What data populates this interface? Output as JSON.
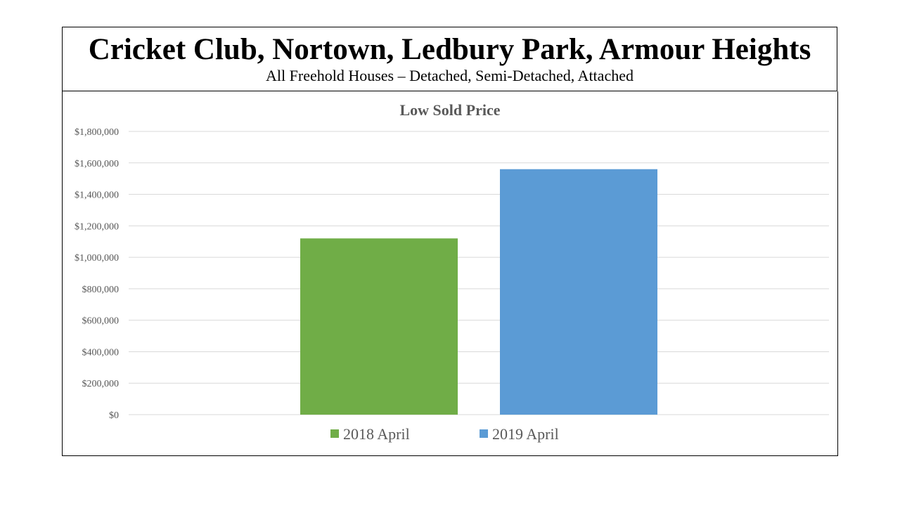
{
  "header": {
    "title": "Cricket Club, Nortown, Ledbury Park, Armour Heights",
    "subtitle": "All Freehold Houses – Detached, Semi-Detached, Attached"
  },
  "chart_data": {
    "type": "bar",
    "title": "Low Sold Price",
    "xlabel": "",
    "ylabel": "",
    "ylim": [
      0,
      1800000
    ],
    "yticks": [
      0,
      200000,
      400000,
      600000,
      800000,
      1000000,
      1200000,
      1400000,
      1600000,
      1800000
    ],
    "ytick_labels": [
      "$0",
      "$200,000",
      "$400,000",
      "$600,000",
      "$800,000",
      "$1,000,000",
      "$1,200,000",
      "$1,400,000",
      "$1,600,000",
      "$1,800,000"
    ],
    "grid": true,
    "legend_position": "bottom",
    "series": [
      {
        "name": "2018 April",
        "values": [
          1120000
        ],
        "color": "#70ad47"
      },
      {
        "name": "2019 April",
        "values": [
          1560000
        ],
        "color": "#5b9bd5"
      }
    ]
  }
}
